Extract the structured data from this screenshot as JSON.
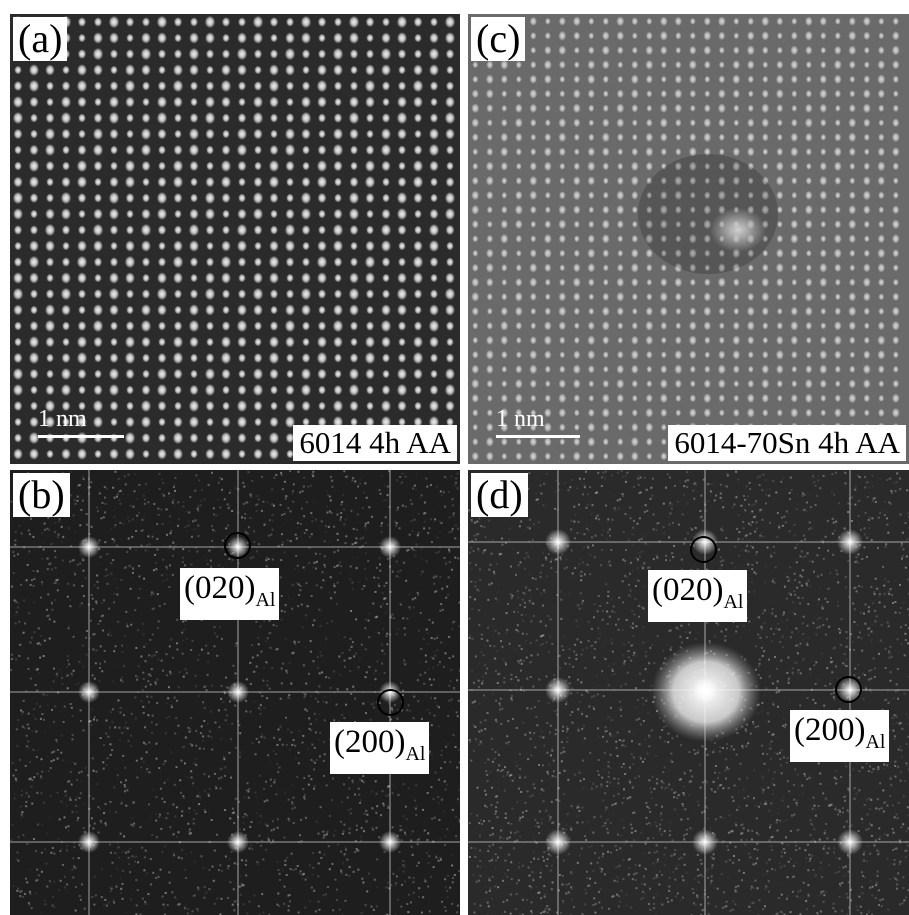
{
  "panels": {
    "a": {
      "letter": "(a)",
      "sample": "6014 4h AA",
      "scale": "1 nm",
      "image": "HRTEM lattice image"
    },
    "b": {
      "letter": "(b)",
      "image": "FFT diffraction pattern",
      "spot_020": {
        "plane": "(020)",
        "subscript": "Al"
      },
      "spot_200": {
        "plane": "(200)",
        "subscript": "Al"
      }
    },
    "c": {
      "letter": "(c)",
      "sample": "6014-70Sn 4h AA",
      "scale": "1 nm",
      "image": "HRTEM lattice image"
    },
    "d": {
      "letter": "(d)",
      "image": "FFT diffraction pattern",
      "spot_020": {
        "plane": "(020)",
        "subscript": "Al"
      },
      "spot_200": {
        "plane": "(200)",
        "subscript": "Al"
      }
    }
  },
  "colors": {
    "background": "#ffffff",
    "label_bg": "#ffffff",
    "circle": "#000000",
    "scalebar": "#ffffff"
  }
}
